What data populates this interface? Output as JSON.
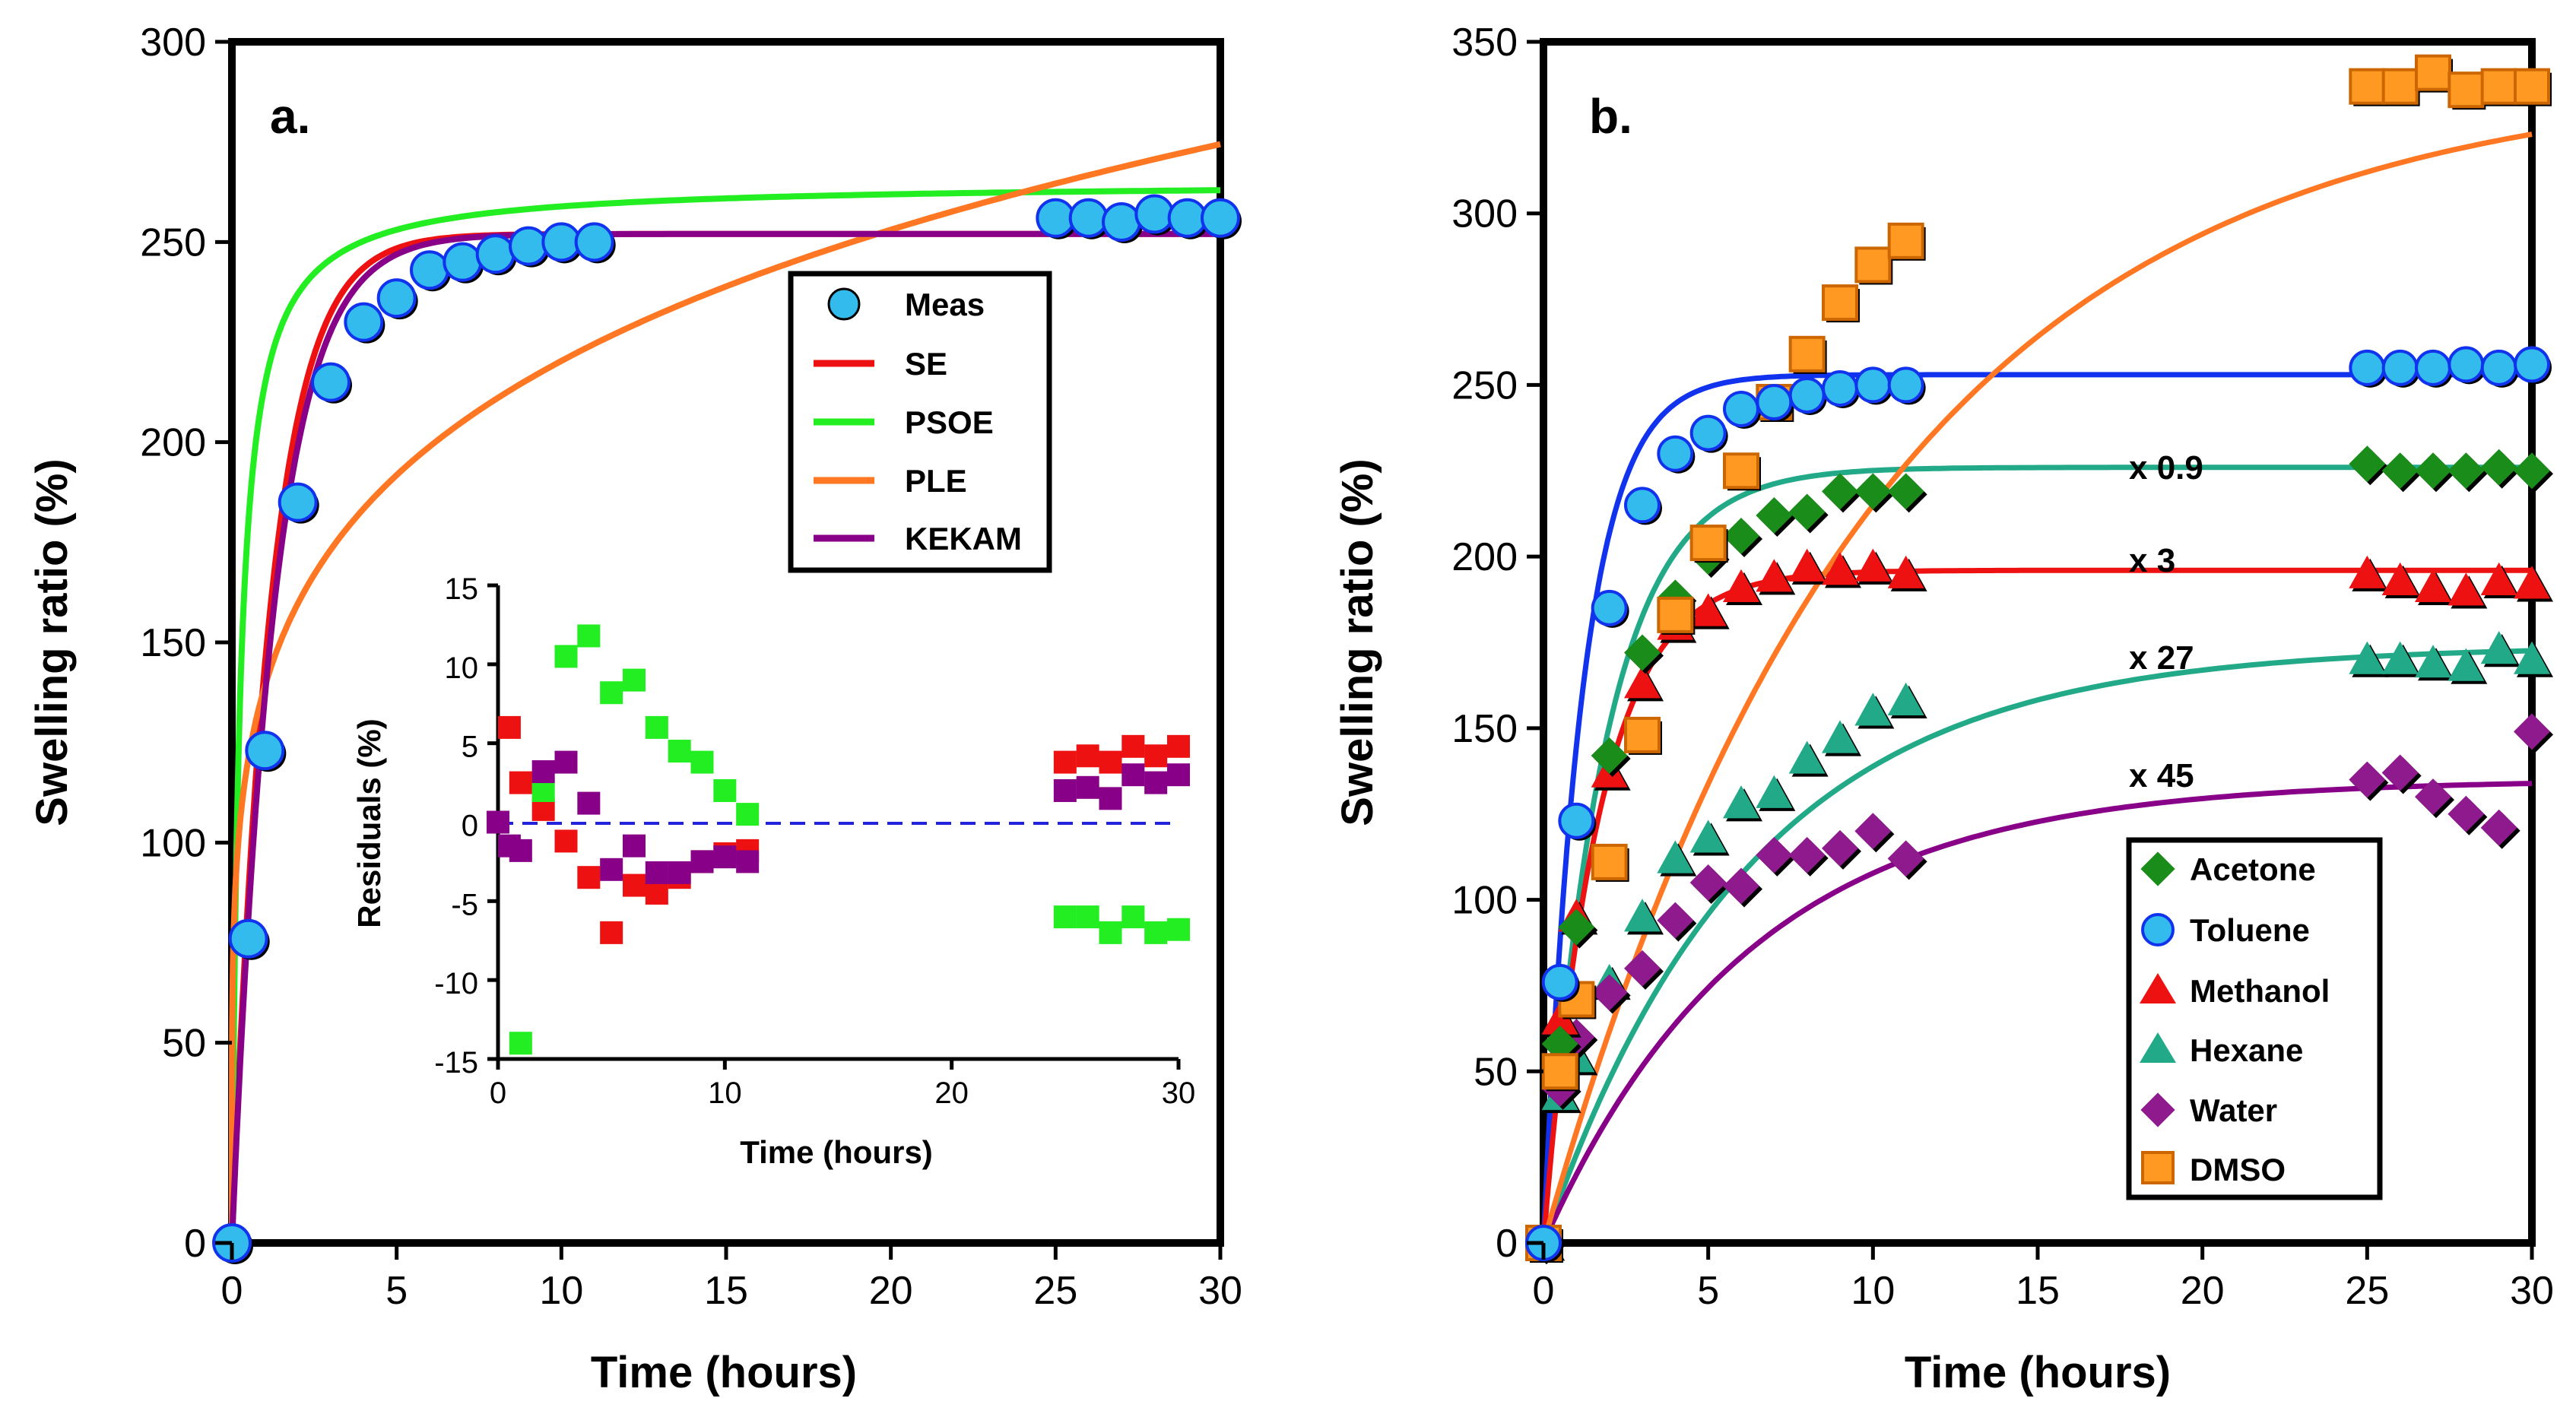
{
  "chart_data": [
    {
      "panel_label": "a.",
      "type": "scatter",
      "xlabel": "Time (hours)",
      "ylabel": "Swelling ratio (%)",
      "xlim": [
        0,
        30
      ],
      "ylim": [
        0,
        300
      ],
      "xticks": [
        "0",
        "5",
        "10",
        "15",
        "20",
        "25",
        "30"
      ],
      "yticks": [
        "0",
        "50",
        "100",
        "150",
        "200",
        "250",
        "300"
      ],
      "legend": [
        "Meas",
        "SE",
        "PSOE",
        "PLE",
        "KEKAM"
      ],
      "measured": {
        "name": "Meas",
        "x": [
          0,
          0.5,
          1,
          2,
          3,
          4,
          5,
          6,
          7,
          8,
          9,
          10,
          11,
          25,
          26,
          27,
          28,
          29,
          30
        ],
        "y": [
          0,
          76,
          123,
          185,
          215,
          230,
          236,
          243,
          245,
          247,
          249,
          250,
          250,
          256,
          256,
          255,
          257,
          256,
          256
        ]
      },
      "fits": [
        {
          "name": "SE",
          "color": "#ee1111",
          "model": "first_order",
          "smax": 252,
          "k": 0.85
        },
        {
          "name": "PSOE",
          "color": "#22ee22",
          "model": "second_order",
          "smax": 265,
          "k": 0.016
        },
        {
          "name": "PLE",
          "color": "#ff7722",
          "model": "power_law",
          "a": 139,
          "n": 0.2
        },
        {
          "name": "KEKAM",
          "color": "#880088",
          "model": "first_order",
          "smax": 252,
          "k": 0.78
        }
      ],
      "inset": {
        "type": "scatter",
        "xlabel": "Time (hours)",
        "ylabel": "Residuals (%)",
        "xlim": [
          0,
          30
        ],
        "ylim": [
          -15,
          15
        ],
        "xticks": [
          "0",
          "10",
          "20",
          "30"
        ],
        "yticks": [
          "-15",
          "-10",
          "-5",
          "0",
          "5",
          "10",
          "15"
        ],
        "series": [
          {
            "name": "SE",
            "color": "#ee1111",
            "x": [
              0.5,
              1,
              2,
              3,
              4,
              5,
              6,
              7,
              8,
              9,
              10,
              11,
              25,
              26,
              27,
              28,
              29,
              30
            ],
            "y": [
              6,
              2.5,
              0.8,
              -1.2,
              -3.5,
              -7,
              -4,
              -4.5,
              -3.5,
              -2.5,
              -2,
              -1.8,
              3.8,
              4.2,
              3.8,
              4.8,
              4.2,
              4.8
            ]
          },
          {
            "name": "PSOE",
            "color": "#22ee22",
            "x": [
              1,
              2,
              3,
              4,
              5,
              6,
              7,
              8,
              9,
              10,
              11,
              25,
              26,
              27,
              28,
              29,
              30
            ],
            "y": [
              -14,
              2,
              10.5,
              11.8,
              8.2,
              9,
              6,
              4.5,
              3.8,
              2,
              0.5,
              -6,
              -6,
              -7,
              -6,
              -7,
              -6.8
            ]
          },
          {
            "name": "KEKAM",
            "color": "#880088",
            "x": [
              0,
              0.5,
              1,
              2,
              3,
              4,
              5,
              6,
              7,
              8,
              9,
              10,
              11,
              25,
              26,
              27,
              28,
              29,
              30
            ],
            "y": [
              0,
              -1.5,
              -1.8,
              3.2,
              3.8,
              1.2,
              -3,
              -1.5,
              -3.2,
              -3.2,
              -2.5,
              -2.2,
              -2.5,
              2,
              2.2,
              1.5,
              3,
              2.5,
              3
            ]
          }
        ]
      }
    },
    {
      "panel_label": "b.",
      "type": "scatter",
      "xlabel": "Time (hours)",
      "ylabel": "Swelling ratio (%)",
      "xlim": [
        0,
        30
      ],
      "ylim": [
        0,
        350
      ],
      "xticks": [
        "0",
        "5",
        "10",
        "15",
        "20",
        "25",
        "30"
      ],
      "yticks": [
        "0",
        "50",
        "100",
        "150",
        "200",
        "250",
        "300",
        "350"
      ],
      "legend": [
        "Acetone",
        "Toluene",
        "Methanol",
        "Hexane",
        "Water",
        "DMSO"
      ],
      "annotations": [
        "x 0.9",
        "x 3",
        "x 27",
        "x 45"
      ],
      "series": [
        {
          "name": "Acetone",
          "marker": "diamond",
          "color": "#1a8c1a",
          "fit_color": "#22aa88",
          "smax": 226,
          "k": 0.55,
          "x": [
            0,
            0.5,
            1,
            2,
            3,
            4,
            5,
            6,
            7,
            8,
            9,
            10,
            11,
            25,
            26,
            27,
            28,
            29,
            30
          ],
          "y": [
            0,
            58,
            92,
            142,
            172,
            188,
            200,
            206,
            212,
            213,
            219,
            219,
            219,
            227,
            225,
            225,
            225,
            226,
            225
          ]
        },
        {
          "name": "Toluene",
          "marker": "circle",
          "color": "#33bbee",
          "fit_color": "#1133ee",
          "smax": 253,
          "k": 0.85,
          "x": [
            0,
            0.5,
            1,
            2,
            3,
            4,
            5,
            6,
            7,
            8,
            9,
            10,
            11,
            25,
            26,
            27,
            28,
            29,
            30
          ],
          "y": [
            0,
            76,
            123,
            185,
            215,
            230,
            236,
            243,
            245,
            247,
            249,
            250,
            250,
            255,
            255,
            255,
            256,
            255,
            256
          ]
        },
        {
          "name": "Methanol",
          "marker": "triangle",
          "color": "#ee1111",
          "fit_color": "#ee1111",
          "smax": 196,
          "k": 0.6,
          "x": [
            0,
            0.5,
            1,
            2,
            3,
            4,
            5,
            6,
            7,
            8,
            9,
            10,
            11,
            25,
            26,
            27,
            28,
            29,
            30
          ],
          "y": [
            0,
            65,
            95,
            137,
            163,
            180,
            184,
            191,
            194,
            197,
            196,
            197,
            195,
            195,
            193,
            191,
            190,
            193,
            192
          ]
        },
        {
          "name": "Hexane",
          "marker": "triangle",
          "color": "#22aa88",
          "fit_color": "#22aa88",
          "smax": 174,
          "k": 0.16,
          "x": [
            0,
            0.5,
            1,
            2,
            3,
            4,
            5,
            6,
            7,
            8,
            9,
            10,
            11,
            25,
            26,
            27,
            28,
            29,
            30
          ],
          "y": [
            0,
            43,
            54,
            76,
            95,
            112,
            118,
            128,
            131,
            141,
            147,
            155,
            158,
            170,
            170,
            169,
            168,
            173,
            170
          ]
        },
        {
          "name": "Water",
          "marker": "diamond",
          "color": "#8e1a8e",
          "fit_color": "#880088",
          "smax": 135,
          "k": 0.16,
          "x": [
            0,
            0.5,
            1,
            2,
            3,
            4,
            5,
            6,
            7,
            8,
            9,
            10,
            11,
            25,
            26,
            27,
            28,
            29,
            30
          ],
          "y": [
            0,
            45,
            60,
            73,
            80,
            94,
            105,
            104,
            113,
            113,
            115,
            120,
            112,
            135,
            137,
            130,
            125,
            121,
            149
          ]
        },
        {
          "name": "DMSO",
          "marker": "square",
          "color": "#ff9922",
          "fit_color": "#ff7722",
          "smax": 340,
          "k": 0.1,
          "x": [
            0,
            0.5,
            1,
            2,
            3,
            4,
            5,
            6,
            7,
            8,
            9,
            10,
            11,
            25,
            26,
            27,
            28,
            29,
            30
          ],
          "y": [
            0,
            50,
            71,
            111,
            148,
            183,
            204,
            225,
            245,
            259,
            274,
            285,
            292,
            337,
            337,
            341,
            336,
            337,
            337
          ]
        }
      ]
    }
  ]
}
